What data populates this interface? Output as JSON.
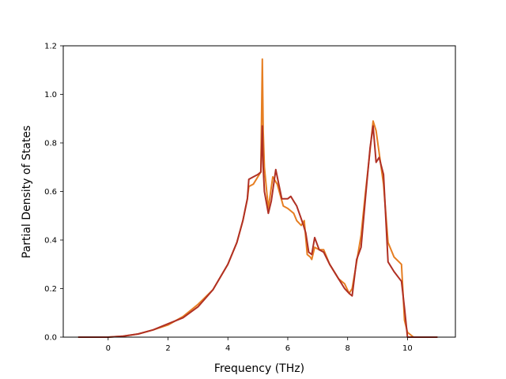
{
  "chart_data": {
    "type": "line",
    "title": "",
    "xlabel": "Frequency (THz)",
    "ylabel": "Partial Density of States",
    "xlim": [
      -1.5,
      11.6
    ],
    "ylim": [
      0,
      1.2
    ],
    "xticks": [
      0,
      2,
      4,
      6,
      8,
      10
    ],
    "yticks": [
      0.0,
      0.2,
      0.4,
      0.6,
      0.8,
      1.0,
      1.2
    ],
    "grid": false,
    "legend": "none",
    "series": [
      {
        "color": "#e67e22",
        "x": [
          -1.0,
          0.0,
          0.5,
          1.0,
          1.5,
          2.0,
          2.5,
          3.0,
          3.5,
          4.0,
          4.3,
          4.5,
          4.65,
          4.7,
          4.85,
          5.0,
          5.1,
          5.15,
          5.18,
          5.22,
          5.35,
          5.5,
          5.65,
          5.85,
          6.0,
          6.1,
          6.2,
          6.3,
          6.45,
          6.55,
          6.65,
          6.75,
          6.8,
          6.9,
          7.05,
          7.2,
          7.4,
          7.7,
          7.9,
          8.05,
          8.15,
          8.3,
          8.45,
          8.6,
          8.75,
          8.85,
          8.95,
          9.05,
          9.2,
          9.35,
          9.55,
          9.8,
          9.9,
          10.0,
          10.2,
          11.0
        ],
        "values": [
          0,
          0,
          0.004,
          0.013,
          0.03,
          0.05,
          0.085,
          0.135,
          0.195,
          0.3,
          0.39,
          0.48,
          0.57,
          0.62,
          0.63,
          0.66,
          0.68,
          1.145,
          0.85,
          0.7,
          0.53,
          0.66,
          0.63,
          0.54,
          0.53,
          0.52,
          0.51,
          0.48,
          0.46,
          0.48,
          0.34,
          0.33,
          0.32,
          0.37,
          0.36,
          0.36,
          0.3,
          0.24,
          0.22,
          0.18,
          0.2,
          0.31,
          0.42,
          0.6,
          0.77,
          0.89,
          0.85,
          0.76,
          0.63,
          0.39,
          0.33,
          0.3,
          0.07,
          0.02,
          0,
          0
        ]
      },
      {
        "color": "#b03024",
        "x": [
          -1.0,
          0.0,
          0.5,
          1.0,
          1.5,
          2.0,
          2.5,
          3.0,
          3.5,
          4.0,
          4.3,
          4.5,
          4.65,
          4.7,
          4.85,
          5.0,
          5.1,
          5.15,
          5.18,
          5.22,
          5.35,
          5.45,
          5.6,
          5.8,
          6.0,
          6.1,
          6.2,
          6.3,
          6.5,
          6.6,
          6.7,
          6.8,
          6.9,
          7.05,
          7.2,
          7.4,
          7.7,
          7.9,
          8.05,
          8.15,
          8.3,
          8.45,
          8.6,
          8.75,
          8.85,
          8.95,
          9.05,
          9.2,
          9.35,
          9.55,
          9.8,
          9.9,
          10.0,
          10.2,
          11.0
        ],
        "values": [
          0,
          0,
          0.004,
          0.013,
          0.03,
          0.055,
          0.08,
          0.125,
          0.195,
          0.3,
          0.39,
          0.48,
          0.57,
          0.65,
          0.66,
          0.67,
          0.68,
          0.87,
          0.7,
          0.6,
          0.51,
          0.56,
          0.69,
          0.57,
          0.57,
          0.58,
          0.56,
          0.54,
          0.47,
          0.43,
          0.35,
          0.34,
          0.41,
          0.36,
          0.35,
          0.3,
          0.24,
          0.2,
          0.18,
          0.17,
          0.32,
          0.37,
          0.58,
          0.78,
          0.87,
          0.72,
          0.74,
          0.67,
          0.31,
          0.27,
          0.23,
          0.12,
          0,
          0,
          0
        ]
      }
    ]
  }
}
